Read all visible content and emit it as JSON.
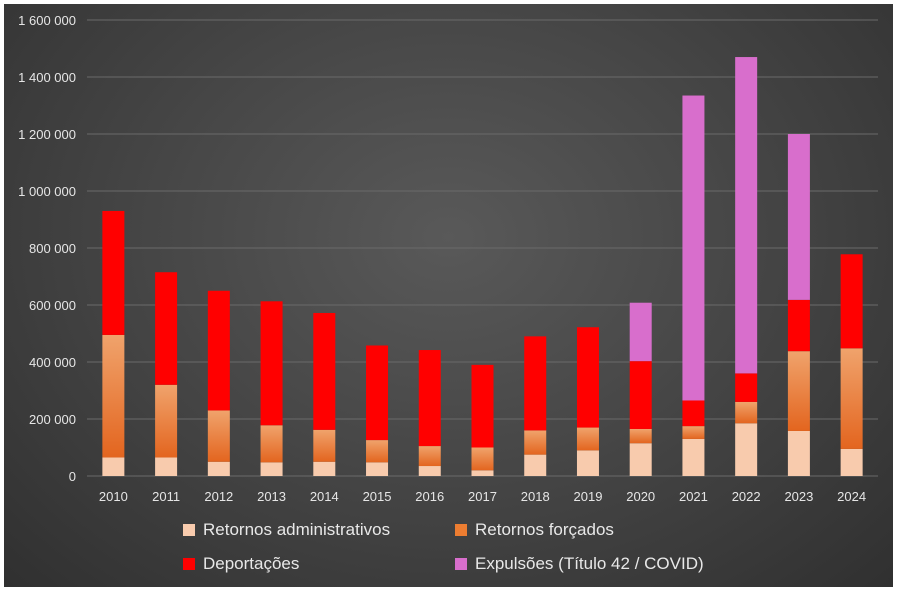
{
  "chart_data": {
    "type": "bar",
    "stacked": true,
    "title": "",
    "xlabel": "",
    "ylabel": "",
    "ylim": [
      0,
      1600000
    ],
    "grid": true,
    "legend_position": "bottom",
    "categories": [
      "2010",
      "2011",
      "2012",
      "2013",
      "2014",
      "2015",
      "2016",
      "2017",
      "2018",
      "2019",
      "2020",
      "2021",
      "2022",
      "2023",
      "2024"
    ],
    "y_ticks": [
      {
        "value": 0,
        "label": "0"
      },
      {
        "value": 200000,
        "label": "200 000"
      },
      {
        "value": 400000,
        "label": "400 000"
      },
      {
        "value": 600000,
        "label": "600 000"
      },
      {
        "value": 800000,
        "label": "800 000"
      },
      {
        "value": 1000000,
        "label": "1 000 000"
      },
      {
        "value": 1200000,
        "label": "1 200 000"
      },
      {
        "value": 1400000,
        "label": "1 400 000"
      },
      {
        "value": 1600000,
        "label": "1 600 000"
      }
    ],
    "series": [
      {
        "name": "Retornos administrativos",
        "color": "#f8cbad",
        "values": [
          65000,
          65000,
          50000,
          48000,
          50000,
          48000,
          35000,
          20000,
          75000,
          90000,
          115000,
          130000,
          185000,
          158000,
          95000
        ]
      },
      {
        "name": "Retornos forçados",
        "color": "#ed7d31",
        "values": [
          430000,
          255000,
          180000,
          130000,
          112000,
          78000,
          70000,
          80000,
          85000,
          80000,
          50000,
          45000,
          75000,
          280000,
          353000
        ]
      },
      {
        "name": "Deportações",
        "color": "#ff0000",
        "values": [
          435000,
          395000,
          420000,
          435000,
          410000,
          332000,
          337000,
          290000,
          330000,
          352000,
          238000,
          90000,
          100000,
          180000,
          330000
        ]
      },
      {
        "name": "Expulsões (Título 42 / COVID)",
        "color": "#d86ecc",
        "values": [
          0,
          0,
          0,
          0,
          0,
          0,
          0,
          0,
          0,
          0,
          205000,
          1070000,
          1110000,
          582000,
          0
        ]
      }
    ]
  }
}
